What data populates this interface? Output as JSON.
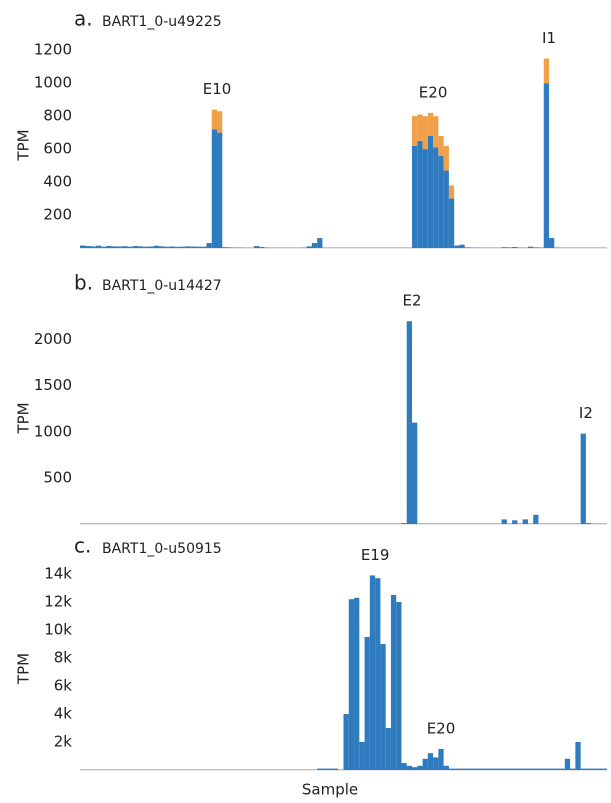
{
  "chart_data": [
    {
      "type": "stacked-bar",
      "label": "a.",
      "title": "BART1_0-u49225",
      "y_label": "TPM",
      "annotations": [
        "E10",
        "E20",
        "I1"
      ],
      "series": [
        {
          "color": "#2e7bbf",
          "values": [
            15,
            12,
            10,
            14,
            8,
            12,
            10,
            9,
            11,
            8,
            12,
            10,
            8,
            9,
            14,
            10,
            8,
            9,
            7,
            8,
            10,
            9,
            8,
            8,
            30,
            720,
            700,
            5,
            4,
            3,
            3,
            2,
            2,
            12,
            6,
            3,
            2,
            2,
            2,
            2,
            2,
            2,
            3,
            10,
            30,
            60,
            2,
            2,
            2,
            2,
            2,
            2,
            2,
            2,
            2,
            2,
            2,
            2,
            2,
            2,
            2,
            2,
            2,
            620,
            650,
            600,
            680,
            610,
            560,
            470,
            300,
            15,
            20,
            4,
            3,
            3,
            2,
            2,
            2,
            2,
            5,
            4,
            6,
            3,
            2,
            8,
            4,
            3,
            1000,
            60,
            3,
            2,
            2,
            2,
            2,
            2,
            2,
            2,
            2,
            2
          ]
        },
        {
          "color": "#f0a048",
          "values": [
            0,
            0,
            0,
            0,
            0,
            0,
            0,
            0,
            0,
            0,
            0,
            0,
            0,
            0,
            0,
            0,
            0,
            0,
            0,
            0,
            0,
            0,
            0,
            0,
            0,
            120,
            130,
            0,
            0,
            0,
            0,
            0,
            0,
            0,
            0,
            0,
            0,
            0,
            0,
            0,
            0,
            0,
            0,
            0,
            0,
            0,
            0,
            0,
            0,
            0,
            0,
            0,
            0,
            0,
            0,
            0,
            0,
            0,
            0,
            0,
            0,
            0,
            0,
            180,
            160,
            200,
            140,
            190,
            120,
            150,
            80,
            0,
            0,
            0,
            0,
            0,
            0,
            0,
            0,
            0,
            0,
            0,
            0,
            0,
            0,
            0,
            0,
            0,
            150,
            0,
            0,
            0,
            0,
            0,
            0,
            0,
            0,
            0,
            0,
            0
          ]
        }
      ],
      "ylim": [
        0,
        1250
      ],
      "yticks": [
        200,
        400,
        600,
        800,
        1000,
        1200
      ]
    },
    {
      "type": "bar",
      "label": "b.",
      "title": "BART1_0-u14427",
      "y_label": "TPM",
      "annotations": [
        "E2",
        "I2"
      ],
      "color": "#2e7bbf",
      "values": [
        5,
        5,
        5,
        5,
        5,
        5,
        5,
        5,
        5,
        5,
        5,
        5,
        5,
        5,
        5,
        5,
        5,
        5,
        5,
        5,
        5,
        5,
        5,
        5,
        5,
        5,
        5,
        5,
        5,
        5,
        5,
        5,
        5,
        5,
        5,
        5,
        5,
        5,
        5,
        5,
        5,
        5,
        5,
        5,
        5,
        5,
        5,
        5,
        5,
        5,
        5,
        5,
        5,
        5,
        5,
        5,
        5,
        5,
        5,
        5,
        5,
        10,
        2200,
        1100,
        5,
        5,
        5,
        5,
        5,
        5,
        5,
        5,
        5,
        5,
        5,
        5,
        5,
        5,
        5,
        5,
        50,
        5,
        40,
        5,
        50,
        5,
        100,
        5,
        5,
        5,
        5,
        5,
        5,
        5,
        5,
        980,
        10,
        5,
        5,
        5
      ],
      "ylim": [
        0,
        2300
      ],
      "yticks": [
        500,
        1000,
        1500,
        2000
      ]
    },
    {
      "type": "bar",
      "label": "c.",
      "title": "BART1_0-u50915",
      "y_label": "TPM",
      "x_label": "Sample",
      "annotations": [
        "E19",
        "E20"
      ],
      "color": "#2e7bbf",
      "values": [
        30,
        30,
        30,
        30,
        30,
        30,
        30,
        30,
        30,
        30,
        30,
        30,
        30,
        30,
        30,
        30,
        30,
        30,
        30,
        30,
        30,
        30,
        30,
        30,
        30,
        30,
        30,
        30,
        30,
        30,
        30,
        30,
        30,
        30,
        30,
        30,
        30,
        30,
        30,
        30,
        30,
        30,
        30,
        30,
        30,
        100,
        100,
        100,
        100,
        30,
        4000,
        12200,
        12300,
        2000,
        9500,
        13900,
        13700,
        9000,
        3000,
        12500,
        12000,
        500,
        300,
        200,
        300,
        800,
        1200,
        900,
        1500,
        300,
        100,
        100,
        100,
        100,
        100,
        100,
        100,
        100,
        100,
        100,
        100,
        100,
        100,
        100,
        100,
        100,
        100,
        100,
        100,
        100,
        100,
        100,
        800,
        100,
        2000,
        100,
        100,
        100,
        100,
        100
      ],
      "ylim": [
        0,
        14500
      ],
      "yticks": [
        {
          "value": 2000,
          "label": "2k"
        },
        {
          "value": 4000,
          "label": "4k"
        },
        {
          "value": 6000,
          "label": "6k"
        },
        {
          "value": 8000,
          "label": "8k"
        },
        {
          "value": 10000,
          "label": "10k"
        },
        {
          "value": 12000,
          "label": "12k"
        },
        {
          "value": 14000,
          "label": "14k"
        }
      ]
    }
  ]
}
